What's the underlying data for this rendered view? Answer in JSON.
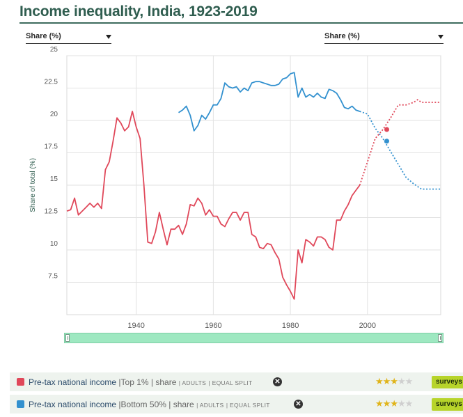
{
  "page": {
    "title": "Income inequality, India, 1923-2019"
  },
  "selectors": {
    "left": "Share (%)",
    "right": "Share (%)"
  },
  "colors": {
    "top1": "#e0485a",
    "bottom50": "#3391cf",
    "grid": "#e2e2e2",
    "slider": "#9ee8c1"
  },
  "chart_data": {
    "type": "line",
    "title": "",
    "xlabel": "",
    "ylabel": "Share of total (%)",
    "xlim": [
      1922,
      2019
    ],
    "ylim": [
      5,
      25
    ],
    "x_ticks": [
      "1940",
      "1960",
      "1980",
      "2000"
    ],
    "y_ticks": [
      "25",
      "22.5",
      "20",
      "17.5",
      "15",
      "12.5",
      "10",
      "7.5"
    ],
    "grid": true,
    "series": [
      {
        "name": "Pre-tax national income |Top 1% | share",
        "color": "#e0485a",
        "points": [
          [
            1922,
            13.0
          ],
          [
            1923,
            13.1
          ],
          [
            1924,
            14.0
          ],
          [
            1925,
            12.7
          ],
          [
            1926,
            13.0
          ],
          [
            1927,
            13.3
          ],
          [
            1928,
            13.6
          ],
          [
            1929,
            13.3
          ],
          [
            1930,
            13.6
          ],
          [
            1931,
            13.2
          ],
          [
            1932,
            16.2
          ],
          [
            1933,
            16.8
          ],
          [
            1934,
            18.4
          ],
          [
            1935,
            20.2
          ],
          [
            1936,
            19.8
          ],
          [
            1937,
            19.2
          ],
          [
            1938,
            19.5
          ],
          [
            1939,
            20.7
          ],
          [
            1940,
            19.5
          ],
          [
            1941,
            18.6
          ],
          [
            1942,
            15.0
          ],
          [
            1943,
            10.6
          ],
          [
            1944,
            10.5
          ],
          [
            1945,
            11.4
          ],
          [
            1946,
            12.9
          ],
          [
            1947,
            11.6
          ],
          [
            1948,
            10.4
          ],
          [
            1949,
            11.6
          ],
          [
            1950,
            11.6
          ],
          [
            1951,
            11.9
          ],
          [
            1952,
            11.2
          ],
          [
            1953,
            12.0
          ],
          [
            1954,
            13.5
          ],
          [
            1955,
            13.4
          ],
          [
            1956,
            14.0
          ],
          [
            1957,
            13.6
          ],
          [
            1958,
            12.7
          ],
          [
            1959,
            13.1
          ],
          [
            1960,
            12.6
          ],
          [
            1961,
            12.6
          ],
          [
            1962,
            12.0
          ],
          [
            1963,
            11.8
          ],
          [
            1964,
            12.4
          ],
          [
            1965,
            12.9
          ],
          [
            1966,
            12.9
          ],
          [
            1967,
            12.3
          ],
          [
            1968,
            12.9
          ],
          [
            1969,
            12.9
          ],
          [
            1970,
            11.2
          ],
          [
            1971,
            11.0
          ],
          [
            1972,
            10.2
          ],
          [
            1973,
            10.1
          ],
          [
            1974,
            10.5
          ],
          [
            1975,
            10.4
          ],
          [
            1976,
            9.8
          ],
          [
            1977,
            9.3
          ],
          [
            1978,
            7.9
          ],
          [
            1979,
            7.3
          ],
          [
            1980,
            6.8
          ],
          [
            1981,
            6.2
          ],
          [
            1982,
            10.0
          ],
          [
            1983,
            9.0
          ],
          [
            1984,
            10.8
          ],
          [
            1985,
            10.6
          ],
          [
            1986,
            10.3
          ],
          [
            1987,
            11.0
          ],
          [
            1988,
            11.0
          ],
          [
            1989,
            10.8
          ],
          [
            1990,
            10.2
          ],
          [
            1991,
            10.0
          ],
          [
            1992,
            12.3
          ],
          [
            1993,
            12.3
          ],
          [
            1994,
            13.0
          ],
          [
            1995,
            13.5
          ],
          [
            1996,
            14.2
          ],
          [
            1997,
            14.6
          ],
          [
            1998,
            15.0
          ]
        ],
        "projection": [
          [
            1998,
            15.0
          ],
          [
            2000,
            16.8
          ],
          [
            2002,
            18.6
          ],
          [
            2004,
            19.3
          ],
          [
            2006,
            20.2
          ],
          [
            2008,
            21.2
          ],
          [
            2010,
            21.2
          ],
          [
            2012,
            21.4
          ],
          [
            2013,
            21.6
          ],
          [
            2014,
            21.4
          ],
          [
            2019,
            21.4
          ]
        ],
        "marker": [
          2005,
          19.3
        ]
      },
      {
        "name": "Pre-tax national income |Bottom 50% | share",
        "color": "#3391cf",
        "points": [
          [
            1951,
            20.6
          ],
          [
            1952,
            20.8
          ],
          [
            1953,
            21.1
          ],
          [
            1954,
            20.4
          ],
          [
            1955,
            19.2
          ],
          [
            1956,
            19.6
          ],
          [
            1957,
            20.4
          ],
          [
            1958,
            20.1
          ],
          [
            1959,
            20.6
          ],
          [
            1960,
            21.2
          ],
          [
            1961,
            21.2
          ],
          [
            1962,
            21.7
          ],
          [
            1963,
            22.9
          ],
          [
            1964,
            22.6
          ],
          [
            1965,
            22.5
          ],
          [
            1966,
            22.6
          ],
          [
            1967,
            22.2
          ],
          [
            1968,
            22.5
          ],
          [
            1969,
            22.3
          ],
          [
            1970,
            22.9
          ],
          [
            1971,
            23.0
          ],
          [
            1972,
            23.0
          ],
          [
            1973,
            22.9
          ],
          [
            1974,
            22.8
          ],
          [
            1975,
            22.7
          ],
          [
            1976,
            22.7
          ],
          [
            1977,
            22.8
          ],
          [
            1978,
            23.2
          ],
          [
            1979,
            23.3
          ],
          [
            1980,
            23.6
          ],
          [
            1981,
            23.7
          ],
          [
            1982,
            21.8
          ],
          [
            1983,
            22.5
          ],
          [
            1984,
            21.8
          ],
          [
            1985,
            22.0
          ],
          [
            1986,
            21.8
          ],
          [
            1987,
            22.1
          ],
          [
            1988,
            21.8
          ],
          [
            1989,
            21.7
          ],
          [
            1990,
            22.4
          ],
          [
            1991,
            22.3
          ],
          [
            1992,
            22.1
          ],
          [
            1993,
            21.6
          ],
          [
            1994,
            21.0
          ],
          [
            1995,
            20.9
          ],
          [
            1996,
            21.1
          ],
          [
            1997,
            20.8
          ],
          [
            1998,
            20.7
          ]
        ],
        "projection": [
          [
            1998,
            20.7
          ],
          [
            2000,
            20.5
          ],
          [
            2002,
            19.4
          ],
          [
            2004,
            18.6
          ],
          [
            2006,
            17.6
          ],
          [
            2008,
            16.6
          ],
          [
            2010,
            15.6
          ],
          [
            2012,
            15.1
          ],
          [
            2014,
            14.7
          ],
          [
            2019,
            14.7
          ]
        ],
        "marker": [
          2005,
          18.4
        ]
      }
    ]
  },
  "legend": [
    {
      "color": "#e0485a",
      "label": "Pre-tax national income",
      "part1": "|Top 1%",
      "part2": "| share",
      "part3": "| ADULTS",
      "part4": "| EQUAL SPLIT",
      "close_icon": "close-circle-icon",
      "rating": 3,
      "rating_max": 5,
      "tag": "surveys a"
    },
    {
      "color": "#3391cf",
      "label": "Pre-tax national income",
      "part1": "|Bottom 50%",
      "part2": "| share",
      "part3": "| ADULTS",
      "part4": "| EQUAL SPLIT",
      "close_icon": "close-circle-icon",
      "rating": 3,
      "rating_max": 5,
      "tag": "surveys a"
    }
  ]
}
